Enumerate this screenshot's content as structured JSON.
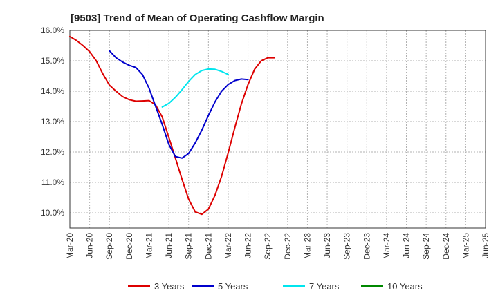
{
  "chart_data": {
    "type": "line",
    "title": "[9503]  Trend of Mean of Operating Cashflow Margin",
    "xlabel": "",
    "ylabel": "",
    "ylim": [
      9.5,
      16.0
    ],
    "yticks": [
      10.0,
      11.0,
      12.0,
      13.0,
      14.0,
      15.0,
      16.0
    ],
    "ytick_labels": [
      "10.0%",
      "11.0%",
      "12.0%",
      "13.0%",
      "14.0%",
      "15.0%",
      "16.0%"
    ],
    "x_categories": [
      "Mar-20",
      "Jun-20",
      "Sep-20",
      "Dec-20",
      "Mar-21",
      "Jun-21",
      "Sep-21",
      "Dec-21",
      "Mar-22",
      "Jun-22",
      "Sep-22",
      "Dec-22",
      "Mar-23",
      "Jun-23",
      "Sep-23",
      "Dec-23",
      "Mar-24",
      "Jun-24",
      "Sep-24",
      "Dec-24",
      "Mar-25",
      "Jun-25"
    ],
    "grid": true,
    "legend_position": "bottom",
    "series": [
      {
        "name": "3 Years",
        "color": "#dd0000",
        "start_index": 0,
        "values": [
          15.8,
          15.67,
          15.5,
          15.3,
          15.0,
          14.57,
          14.2,
          14.0,
          13.82,
          13.72,
          13.67,
          13.68,
          13.69,
          13.55,
          13.15,
          12.48,
          11.8,
          11.1,
          10.45,
          10.03,
          9.95,
          10.12,
          10.58,
          11.2,
          11.98,
          12.8,
          13.58,
          14.22,
          14.72,
          15.0,
          15.1,
          15.1
        ]
      },
      {
        "name": "5 Years",
        "color": "#0000cc",
        "start_index": 6,
        "values": [
          15.33,
          15.1,
          14.96,
          14.85,
          14.78,
          14.55,
          14.1,
          13.5,
          12.9,
          12.25,
          11.85,
          11.8,
          11.95,
          12.3,
          12.72,
          13.2,
          13.65,
          14.0,
          14.22,
          14.35,
          14.4,
          14.38
        ]
      },
      {
        "name": "7 Years",
        "color": "#00e5ee",
        "start_index": 14,
        "values": [
          13.48,
          13.6,
          13.8,
          14.05,
          14.32,
          14.55,
          14.68,
          14.73,
          14.72,
          14.65,
          14.55
        ]
      },
      {
        "name": "10 Years",
        "color": "#008800",
        "start_index": 0,
        "values": []
      }
    ]
  }
}
